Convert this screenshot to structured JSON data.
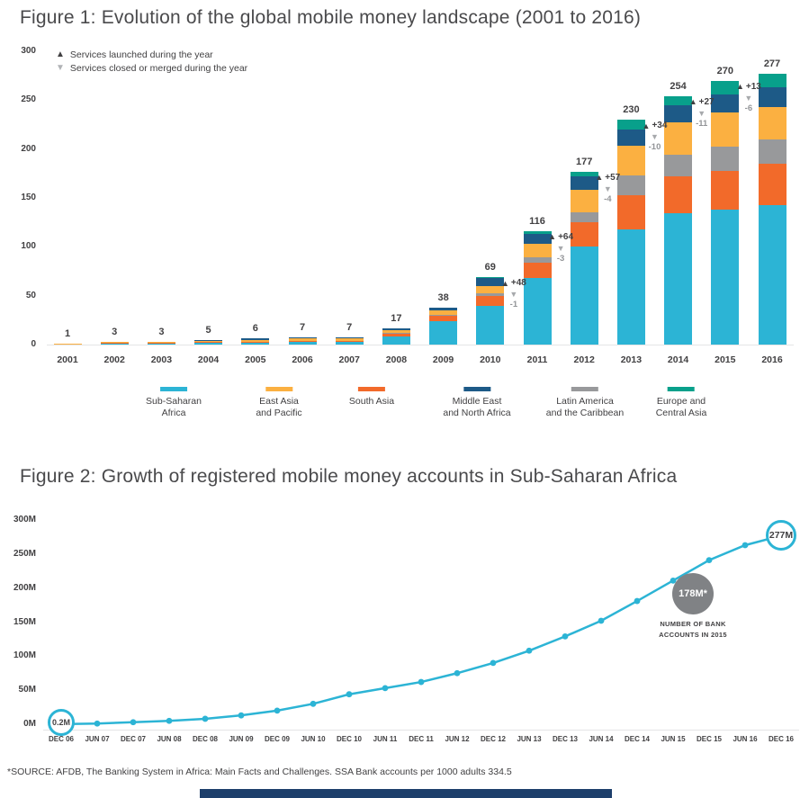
{
  "figure1": {
    "title": "Figure 1: Evolution of the global mobile money landscape (2001 to 2016)",
    "legend_launched": "Services launched during the year",
    "legend_closed": "Services closed or merged during the year",
    "region_legend": [
      {
        "lines": [
          "Sub-Saharan",
          "Africa"
        ],
        "color": "#2cb4d5"
      },
      {
        "lines": [
          "East Asia",
          "and Pacific"
        ],
        "color": "#fbb041"
      },
      {
        "lines": [
          "South Asia"
        ],
        "color": "#f26a2a"
      },
      {
        "lines": [
          "Middle East",
          "and North Africa"
        ],
        "color": "#1d5a87"
      },
      {
        "lines": [
          "Latin America",
          "and the Caribbean"
        ],
        "color": "#98999b"
      },
      {
        "lines": [
          "Europe and",
          "Central Asia"
        ],
        "color": "#08a08b"
      }
    ]
  },
  "figure2": {
    "title": "Figure 2: Growth of registered mobile money accounts in Sub-Saharan Africa"
  },
  "footnote": "*SOURCE: AFDB, The Banking System in Africa: Main Facts and Challenges. SSA Bank accounts per 1000 adults 334.5",
  "chart_data": [
    {
      "type": "bar",
      "stacked": true,
      "title": "Figure 1: Evolution of the global mobile money landscape (2001 to 2016)",
      "categories": [
        "2001",
        "2002",
        "2003",
        "2004",
        "2005",
        "2006",
        "2007",
        "2008",
        "2009",
        "2010",
        "2011",
        "2012",
        "2013",
        "2014",
        "2015",
        "2016"
      ],
      "totals": [
        1,
        3,
        3,
        5,
        6,
        7,
        7,
        17,
        38,
        69,
        116,
        177,
        230,
        254,
        270,
        277
      ],
      "series": [
        {
          "name": "Sub-Saharan Africa",
          "color": "#2cb4d5",
          "values": [
            0,
            1,
            1,
            2,
            2,
            3,
            3,
            8,
            24,
            40,
            68,
            100,
            118,
            134,
            138,
            143
          ]
        },
        {
          "name": "South Asia",
          "color": "#f26a2a",
          "values": [
            0,
            1,
            1,
            1,
            1,
            1,
            1,
            3,
            5,
            10,
            16,
            25,
            35,
            38,
            40,
            42
          ]
        },
        {
          "name": "Latin America and the Caribbean",
          "color": "#98999b",
          "values": [
            0,
            0,
            0,
            0,
            0,
            0,
            0,
            1,
            1,
            2,
            5,
            10,
            20,
            22,
            24,
            25
          ]
        },
        {
          "name": "East Asia and Pacific",
          "color": "#fbb041",
          "values": [
            1,
            1,
            1,
            1,
            2,
            2,
            2,
            3,
            5,
            8,
            14,
            23,
            30,
            33,
            35,
            33
          ]
        },
        {
          "name": "Middle East and North Africa",
          "color": "#1d5a87",
          "values": [
            0,
            0,
            0,
            1,
            1,
            1,
            1,
            2,
            3,
            8,
            10,
            14,
            17,
            18,
            19,
            20
          ]
        },
        {
          "name": "Europe and Central Asia",
          "color": "#08a08b",
          "values": [
            0,
            0,
            0,
            0,
            0,
            0,
            0,
            0,
            0,
            1,
            3,
            5,
            10,
            9,
            14,
            14
          ]
        }
      ],
      "ylim": [
        0,
        300
      ],
      "yticks": [
        0,
        50,
        100,
        150,
        200,
        250,
        300
      ],
      "grid": false,
      "legend_position": "bottom",
      "annotations": [
        {
          "between": [
            "2010",
            "2011"
          ],
          "launched": "+48",
          "closed": "-1"
        },
        {
          "between": [
            "2011",
            "2012"
          ],
          "launched": "+64",
          "closed": "-3"
        },
        {
          "between": [
            "2012",
            "2013"
          ],
          "launched": "+57",
          "closed": "-4"
        },
        {
          "between": [
            "2013",
            "2014"
          ],
          "launched": "+34",
          "closed": "-10"
        },
        {
          "between": [
            "2014",
            "2015"
          ],
          "launched": "+27",
          "closed": "-11"
        },
        {
          "between": [
            "2015",
            "2016"
          ],
          "launched": "+13",
          "closed": "-6"
        }
      ]
    },
    {
      "type": "line",
      "title": "Figure 2: Growth of registered mobile money accounts in Sub-Saharan Africa",
      "x": [
        "DEC 06",
        "JUN 07",
        "DEC 07",
        "JUN 08",
        "DEC 08",
        "JUN 09",
        "DEC 09",
        "JUN 10",
        "DEC 10",
        "JUN 11",
        "DEC 11",
        "JUN 12",
        "DEC 12",
        "JUN 13",
        "DEC 13",
        "JUN 14",
        "DEC 14",
        "JUN 15",
        "DEC 15",
        "JUN 16",
        "DEC 16"
      ],
      "values": [
        0.2,
        1,
        3,
        5,
        8,
        13,
        20,
        30,
        44,
        53,
        62,
        75,
        90,
        108,
        129,
        152,
        181,
        211,
        241,
        263,
        277
      ],
      "unit": "M",
      "ylim": [
        0,
        300
      ],
      "yticks": [
        0,
        50,
        100,
        150,
        200,
        250,
        300
      ],
      "grid": false,
      "color": "#2cb4d5",
      "endpoint_labels": {
        "first": "0.2M",
        "last": "277M"
      },
      "annotation": {
        "value": "178M*",
        "caption": "NUMBER OF BANK ACCOUNTS IN 2015"
      }
    }
  ]
}
